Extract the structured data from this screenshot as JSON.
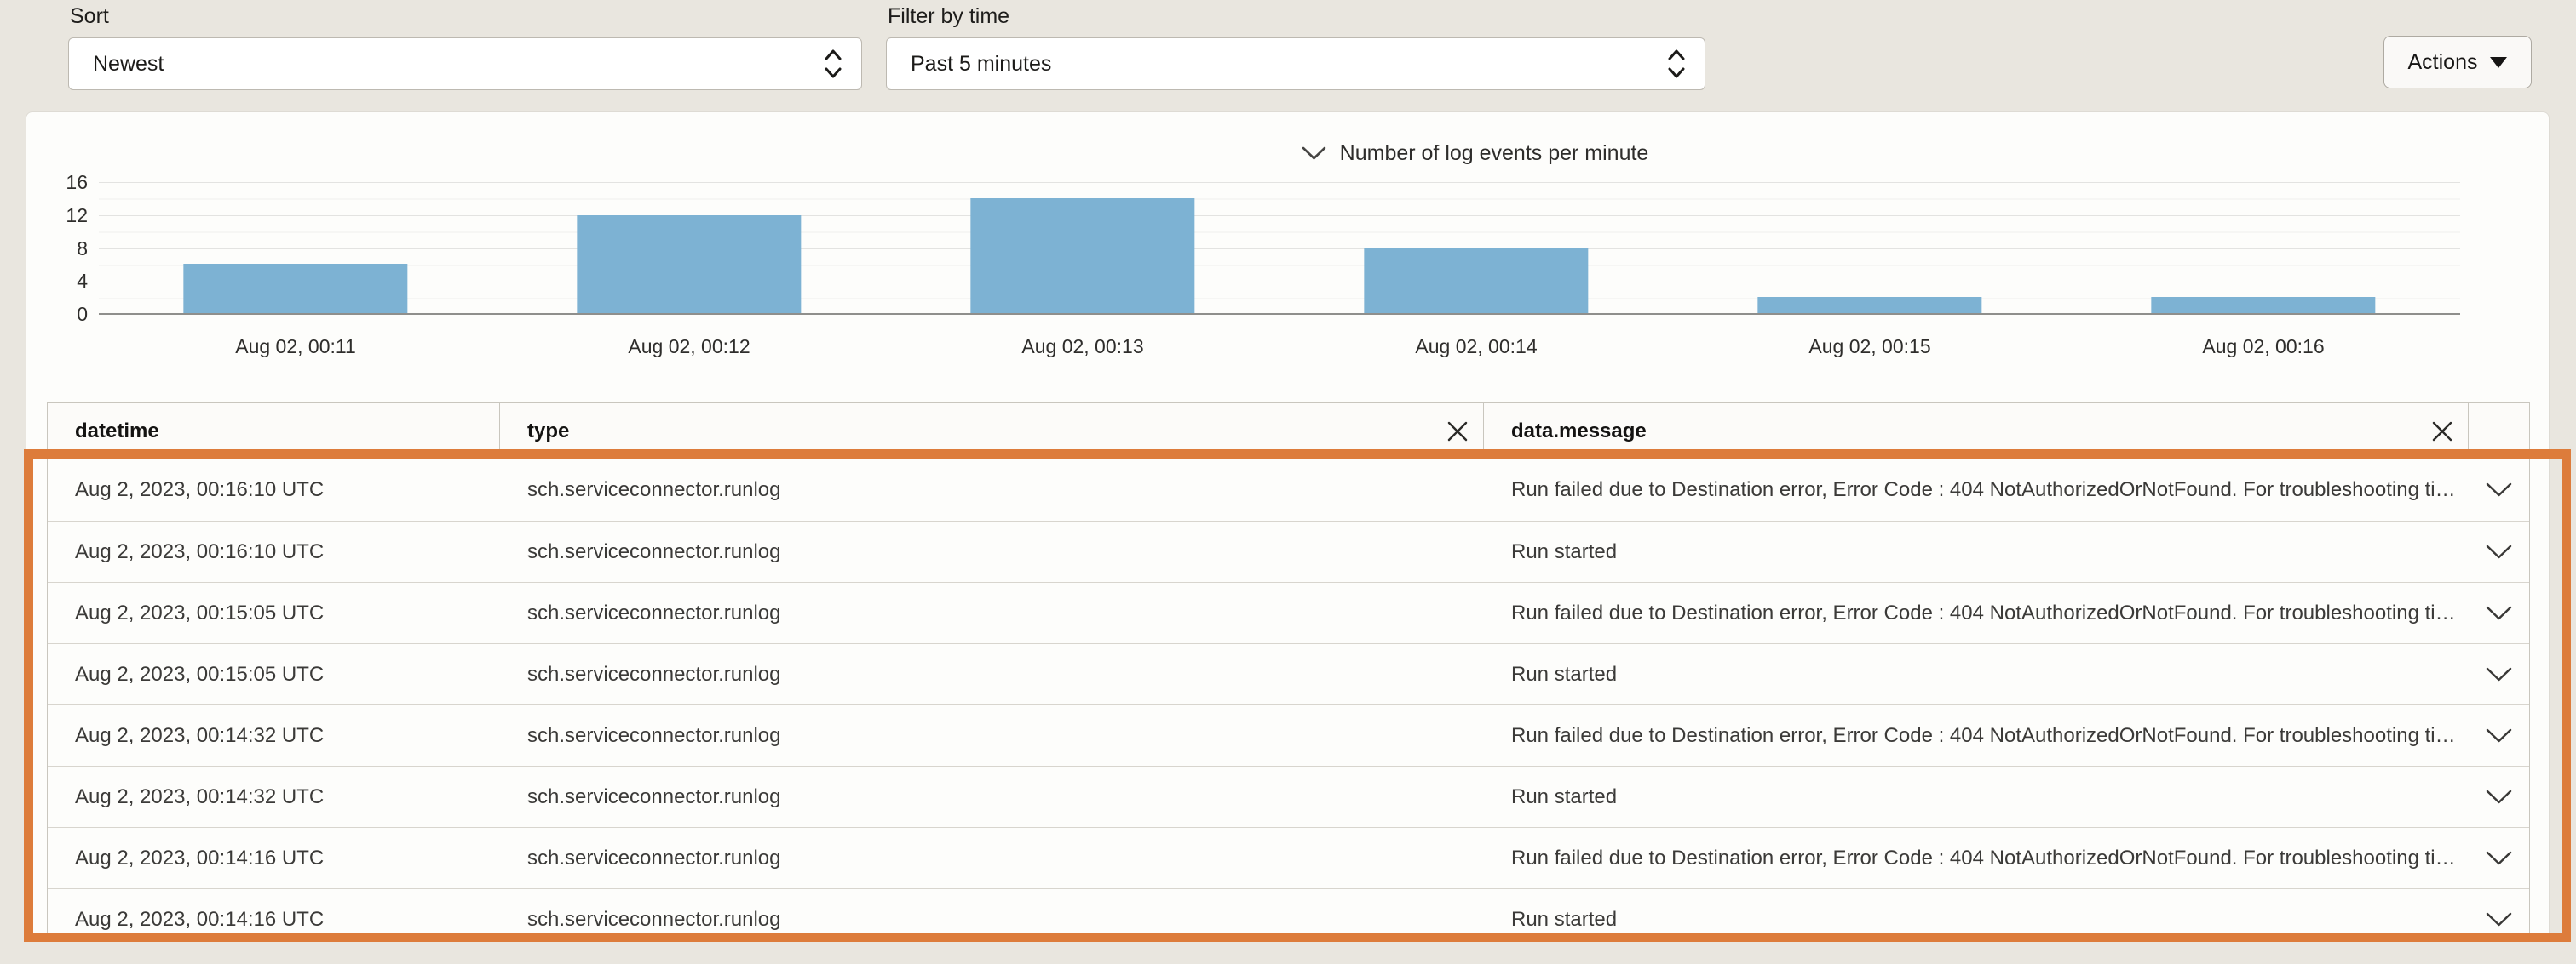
{
  "toolbar": {
    "sort": {
      "label": "Sort",
      "value": "Newest"
    },
    "filter": {
      "label": "Filter by time",
      "value": "Past 5 minutes"
    },
    "actions_label": "Actions"
  },
  "chart_data": {
    "type": "bar",
    "title": "Number of log events per minute",
    "categories": [
      "Aug 02, 00:11",
      "Aug 02, 00:12",
      "Aug 02, 00:13",
      "Aug 02, 00:14",
      "Aug 02, 00:15",
      "Aug 02, 00:16"
    ],
    "values": [
      6,
      12,
      14,
      8,
      2,
      2
    ],
    "xlabel": "",
    "ylabel": "",
    "ylim": [
      0,
      16
    ],
    "yticks": [
      0,
      4,
      8,
      12,
      16
    ],
    "grid": true,
    "legend_position": "none",
    "bar_color": "#7db2d3"
  },
  "table": {
    "columns": {
      "datetime": "datetime",
      "type": "type",
      "message": "data.message"
    },
    "rows": [
      {
        "datetime": "Aug 2, 2023, 00:16:10 UTC",
        "type": "sch.serviceconnector.runlog",
        "message": "Run failed due to Destination error, Error Code : 404 NotAuthorizedOrNotFound. For troubleshooting ti…"
      },
      {
        "datetime": "Aug 2, 2023, 00:16:10 UTC",
        "type": "sch.serviceconnector.runlog",
        "message": "Run started"
      },
      {
        "datetime": "Aug 2, 2023, 00:15:05 UTC",
        "type": "sch.serviceconnector.runlog",
        "message": "Run failed due to Destination error, Error Code : 404 NotAuthorizedOrNotFound. For troubleshooting ti…"
      },
      {
        "datetime": "Aug 2, 2023, 00:15:05 UTC",
        "type": "sch.serviceconnector.runlog",
        "message": "Run started"
      },
      {
        "datetime": "Aug 2, 2023, 00:14:32 UTC",
        "type": "sch.serviceconnector.runlog",
        "message": "Run failed due to Destination error, Error Code : 404 NotAuthorizedOrNotFound. For troubleshooting ti…"
      },
      {
        "datetime": "Aug 2, 2023, 00:14:32 UTC",
        "type": "sch.serviceconnector.runlog",
        "message": "Run started"
      },
      {
        "datetime": "Aug 2, 2023, 00:14:16 UTC",
        "type": "sch.serviceconnector.runlog",
        "message": "Run failed due to Destination error, Error Code : 404 NotAuthorizedOrNotFound. For troubleshooting ti…"
      },
      {
        "datetime": "Aug 2, 2023, 00:14:16 UTC",
        "type": "sch.serviceconnector.runlog",
        "message": "Run started"
      }
    ]
  },
  "annotation": {
    "highlight_color": "#dd7c3b"
  }
}
